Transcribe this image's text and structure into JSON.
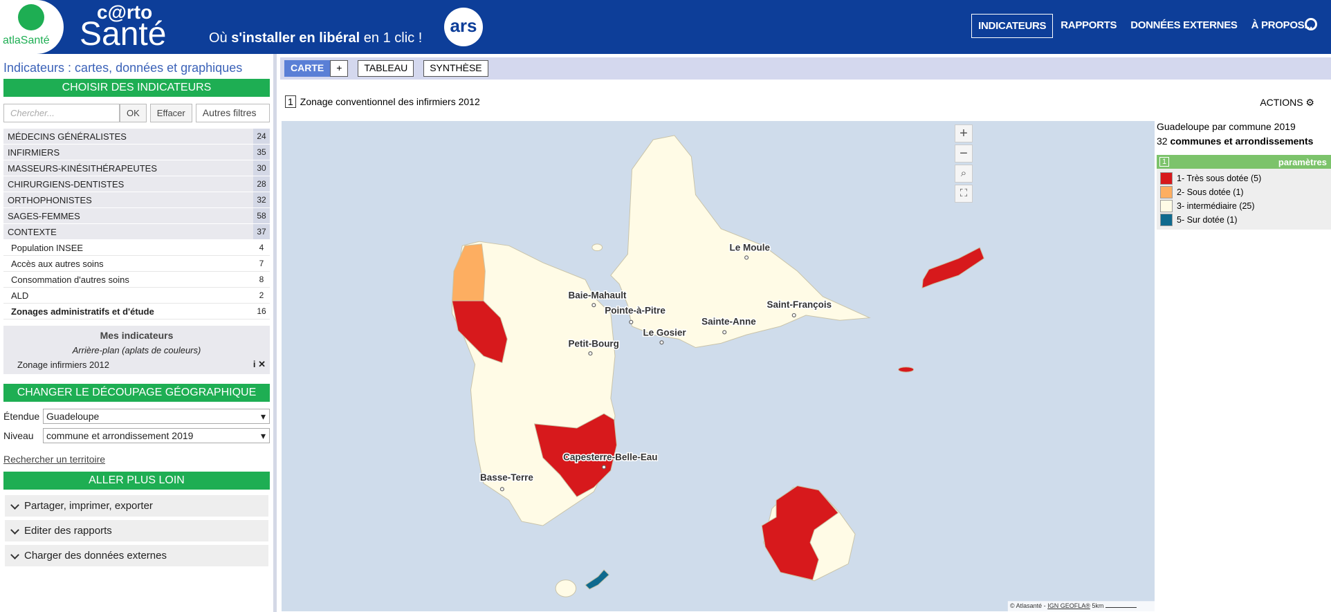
{
  "header": {
    "logo_text": "atlaSanté",
    "brand_top": "c@rto",
    "brand_bottom": "Santé",
    "tagline_pre": "Où",
    "tagline_bold": "s'installer en libéral",
    "tagline_post": "en 1 clic !",
    "ars": "ars",
    "nav": [
      "INDICATEURS",
      "RAPPORTS",
      "DONNÉES EXTERNES",
      "À PROPOS..."
    ]
  },
  "sidebar": {
    "title": "Indicateurs : cartes, données et graphiques",
    "choose": "CHOISIR DES INDICATEURS",
    "search_placeholder": "Chercher...",
    "ok": "OK",
    "clear": "Effacer",
    "filters": "Autres filtres",
    "categories": [
      {
        "label": "MÉDECINS GÉNÉRALISTES",
        "count": 24
      },
      {
        "label": "INFIRMIERS",
        "count": 35
      },
      {
        "label": "MASSEURS-KINÉSITHÉRAPEUTES",
        "count": 30
      },
      {
        "label": "CHIRURGIENS-DENTISTES",
        "count": 28
      },
      {
        "label": "ORTHOPHONISTES",
        "count": 32
      },
      {
        "label": "SAGES-FEMMES",
        "count": 58
      },
      {
        "label": "CONTEXTE",
        "count": 37
      }
    ],
    "context_items": [
      {
        "label": "Population INSEE",
        "count": 4
      },
      {
        "label": "Accès aux autres soins",
        "count": 7
      },
      {
        "label": "Consommation d'autres soins",
        "count": 8
      },
      {
        "label": "ALD",
        "count": 2
      },
      {
        "label": "Zonages administratifs et d'étude",
        "count": 16
      }
    ],
    "my_indicators": {
      "title": "Mes indicateurs",
      "background": "Arrière-plan (aplats de couleurs)",
      "item": "Zonage infirmiers 2012"
    },
    "geo": {
      "title": "CHANGER LE DÉCOUPAGE GÉOGRAPHIQUE",
      "extent_label": "Étendue",
      "extent": "Guadeloupe",
      "level_label": "Niveau",
      "level": "commune et arrondissement 2019",
      "search": "Rechercher un territoire"
    },
    "further": {
      "title": "ALLER PLUS LOIN",
      "items": [
        "Partager, imprimer, exporter",
        "Editer des rapports",
        "Charger des données externes"
      ]
    }
  },
  "tabs": [
    "CARTE",
    "+",
    "TABLEAU",
    "SYNTHÈSE"
  ],
  "map": {
    "index": "1",
    "title": "Zonage conventionnel des infirmiers 2012",
    "actions": "ACTIONS",
    "labels": [
      "Le Moule",
      "Baie-Mahault",
      "Pointe-à-Pitre",
      "Sainte-Anne",
      "Saint-François",
      "Le Gosier",
      "Petit-Bourg",
      "Capesterre-Belle-Eau",
      "Basse-Terre"
    ],
    "attribution": "© Atlasanté -",
    "attribution_link": "IGN GEOFLA®",
    "scale": "5km"
  },
  "legend": {
    "title": "Guadeloupe par commune 2019",
    "count": "32",
    "count_label": "communes et arrondissements",
    "index": "1",
    "params": "paramètres",
    "items": [
      {
        "label": "1- Très sous dotée (5)",
        "color": "#d7191c"
      },
      {
        "label": "2- Sous dotée (1)",
        "color": "#fdae61"
      },
      {
        "label": "3- intermédiaire (25)",
        "color": "#fffbe6"
      },
      {
        "label": "5- Sur dotée (1)",
        "color": "#0f6a8e"
      }
    ]
  }
}
